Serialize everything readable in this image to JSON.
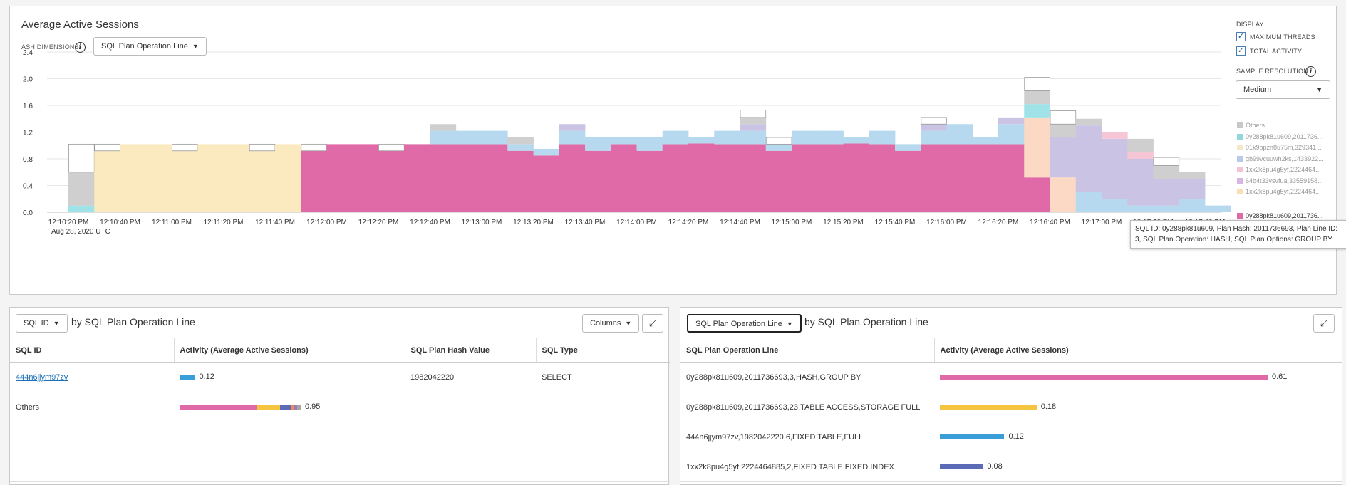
{
  "chart_panel": {
    "title": "Average Active Sessions",
    "ash_dimensions_label": "ASH DIMENSIONS",
    "dimension_select": "SQL Plan Operation Line",
    "display_label": "DISPLAY",
    "max_threads_label": "MAXIMUM THREADS",
    "total_activity_label": "TOTAL ACTIVITY",
    "max_threads_checked": true,
    "total_activity_checked": true,
    "sample_resolution_label": "SAMPLE RESOLUTION",
    "sample_resolution_value": "Medium",
    "date_label": "Aug 28, 2020 UTC",
    "tooltip": "SQL ID: 0y288pk81u609, Plan Hash: 2011736693, Plan Line ID: 3, SQL Plan Operation: HASH, SQL Plan Options: GROUP BY",
    "legend": [
      {
        "label": "Others",
        "color": "#c8c8c8"
      },
      {
        "label": "0y288pk81u609,2011736...",
        "color": "#8fd9dd"
      },
      {
        "label": "01k9bpzn8u75m,329341...",
        "color": "#f5e8c6"
      },
      {
        "label": "gb99vcuuwh2ks,1433922...",
        "color": "#b9c9e8"
      },
      {
        "label": "1xx2k8pu4g5yf,2224464...",
        "color": "#f4c3d2"
      },
      {
        "label": "64b4t33vsvfua,33559158...",
        "color": "#d7b6e3"
      },
      {
        "label": "1xx2k8pu4g5yf,2224464...",
        "color": "#f8dfb8"
      },
      {
        "label": "0y288pk81u609,2011736...",
        "color": "#e06aa7"
      }
    ]
  },
  "chart_data": {
    "type": "area",
    "title": "Average Active Sessions",
    "ylim": [
      0,
      2.4
    ],
    "y_ticks": [
      "0.0",
      "0.4",
      "0.8",
      "1.2",
      "1.6",
      "2.0",
      "2.4"
    ],
    "x_ticks": [
      "12:10:20 PM",
      "12:10:40 PM",
      "12:11:00 PM",
      "12:11:20 PM",
      "12:11:40 PM",
      "12:12:00 PM",
      "12:12:20 PM",
      "12:12:40 PM",
      "12:13:00 PM",
      "12:13:20 PM",
      "12:13:40 PM",
      "12:14:00 PM",
      "12:14:20 PM",
      "12:14:40 PM",
      "12:15:00 PM",
      "12:15:20 PM",
      "12:15:40 PM",
      "12:16:00 PM",
      "12:16:20 PM",
      "12:16:40 PM",
      "12:17:00 PM",
      "12:17:20 PM",
      "12:17:40 PM"
    ],
    "x_start": "12:10:20 PM",
    "x_step_seconds": 10,
    "layer_order": [
      "pink",
      "yellow",
      "blue",
      "peach",
      "purple",
      "lightpink",
      "teal",
      "gray"
    ],
    "layer_colors": {
      "pink": "#e06aa7",
      "yellow": "#fbe9bf",
      "blue": "#b6d9f0",
      "peach": "#fbd9c4",
      "purple": "#cbc3e3",
      "lightpink": "#f7c6d6",
      "teal": "#9fe3e8",
      "gray": "#cfcfcf"
    },
    "max_threads_color": "#ffffff",
    "columns": [
      {
        "yellow": 0.0,
        "teal": 0.1,
        "gray": 0.5,
        "max": 1.02
      },
      {
        "yellow": 0.92,
        "max": 1.02
      },
      {
        "yellow": 1.02,
        "max": 1.02
      },
      {
        "yellow": 1.02,
        "max": 1.02
      },
      {
        "yellow": 0.92,
        "max": 1.02
      },
      {
        "yellow": 1.02,
        "max": 1.02
      },
      {
        "yellow": 1.02,
        "max": 1.02
      },
      {
        "yellow": 0.92,
        "max": 1.02
      },
      {
        "yellow": 1.02,
        "max": 1.02
      },
      {
        "pink": 0.92,
        "max": 1.02
      },
      {
        "pink": 1.02,
        "max": 1.02
      },
      {
        "pink": 1.02,
        "max": 1.02
      },
      {
        "pink": 0.92,
        "max": 1.02
      },
      {
        "pink": 1.02,
        "max": 1.02
      },
      {
        "pink": 1.02,
        "blue": 0.2,
        "gray": 0.1
      },
      {
        "pink": 1.02,
        "blue": 0.2
      },
      {
        "pink": 1.02,
        "blue": 0.2
      },
      {
        "pink": 0.92,
        "blue": 0.1,
        "gray": 0.1
      },
      {
        "pink": 0.85,
        "blue": 0.1
      },
      {
        "pink": 1.02,
        "blue": 0.2,
        "purple": 0.1
      },
      {
        "pink": 0.92,
        "blue": 0.2
      },
      {
        "pink": 1.02,
        "blue": 0.1
      },
      {
        "pink": 0.92,
        "blue": 0.2
      },
      {
        "pink": 1.02,
        "blue": 0.2
      },
      {
        "pink": 1.03,
        "blue": 0.1
      },
      {
        "pink": 1.02,
        "blue": 0.2
      },
      {
        "pink": 1.02,
        "blue": 0.2,
        "purple": 0.1,
        "gray": 0.1,
        "max": 1.53
      },
      {
        "pink": 0.92,
        "blue": 0.1,
        "max": 1.12
      },
      {
        "pink": 1.02,
        "blue": 0.2
      },
      {
        "pink": 1.02,
        "blue": 0.2
      },
      {
        "pink": 1.03,
        "blue": 0.1
      },
      {
        "pink": 1.02,
        "blue": 0.2
      },
      {
        "pink": 0.92,
        "blue": 0.1
      },
      {
        "pink": 1.02,
        "blue": 0.2,
        "purple": 0.1,
        "max": 1.42
      },
      {
        "pink": 1.02,
        "blue": 0.3
      },
      {
        "pink": 1.02,
        "blue": 0.1
      },
      {
        "pink": 1.02,
        "blue": 0.3,
        "purple": 0.1
      },
      {
        "pink": 0.52,
        "teal": 0.2,
        "peach": 0.9,
        "gray": 0.2,
        "max": 2.02
      },
      {
        "peach": 0.52,
        "purple": 0.6,
        "gray": 0.2,
        "max": 1.52
      },
      {
        "blue": 0.3,
        "purple": 1.0,
        "gray": 0.1
      },
      {
        "blue": 0.2,
        "purple": 0.9,
        "lightpink": 0.1
      },
      {
        "blue": 0.1,
        "purple": 0.7,
        "lightpink": 0.1,
        "gray": 0.2
      },
      {
        "blue": 0.1,
        "purple": 0.4,
        "gray": 0.2,
        "max": 0.82
      },
      {
        "blue": 0.2,
        "purple": 0.3,
        "gray": 0.1
      },
      {
        "blue": 0.1
      }
    ]
  },
  "left_table": {
    "dim_select": "SQL ID",
    "by_text": "by SQL Plan Operation Line",
    "columns_button": "Columns",
    "headers": [
      "SQL ID",
      "Activity (Average Active Sessions)",
      "SQL Plan Hash Value",
      "SQL Type"
    ],
    "rows": [
      {
        "sql_id": "444n6jjym97zv",
        "activity": 0.12,
        "activity_label": "0.12",
        "hash": "1982042220",
        "type": "SELECT",
        "segments": [
          {
            "color": "#3a9fd8",
            "value": 0.12
          }
        ]
      },
      {
        "sql_id": "Others",
        "activity": 0.95,
        "activity_label": "0.95",
        "hash": "",
        "type": "",
        "segments": [
          {
            "color": "#e06aa7",
            "value": 0.61
          },
          {
            "color": "#f5c542",
            "value": 0.18
          },
          {
            "color": "#5b6bb5",
            "value": 0.08
          },
          {
            "color": "#f08a5d",
            "value": 0.03
          },
          {
            "color": "#9b7bb8",
            "value": 0.02
          },
          {
            "color": "#a6a6a6",
            "value": 0.03
          }
        ]
      }
    ]
  },
  "right_table": {
    "dim_select": "SQL Plan Operation Line",
    "by_text": "by SQL Plan Operation Line",
    "headers": [
      "SQL Plan Operation Line",
      "Activity (Average Active Sessions)"
    ],
    "rows": [
      {
        "line": "0y288pk81u609,2011736693,3,HASH,GROUP BY",
        "activity": 0.61,
        "activity_label": "0.61",
        "color": "#e06aa7"
      },
      {
        "line": "0y288pk81u609,2011736693,23,TABLE ACCESS,STORAGE FULL",
        "activity": 0.18,
        "activity_label": "0.18",
        "color": "#f5c542"
      },
      {
        "line": "444n6jjym97zv,1982042220,6,FIXED TABLE,FULL",
        "activity": 0.12,
        "activity_label": "0.12",
        "color": "#3a9fd8"
      },
      {
        "line": "1xx2k8pu4g5yf,2224464885,2,FIXED TABLE,FIXED INDEX",
        "activity": 0.08,
        "activity_label": "0.08",
        "color": "#5b6bb5"
      }
    ]
  }
}
